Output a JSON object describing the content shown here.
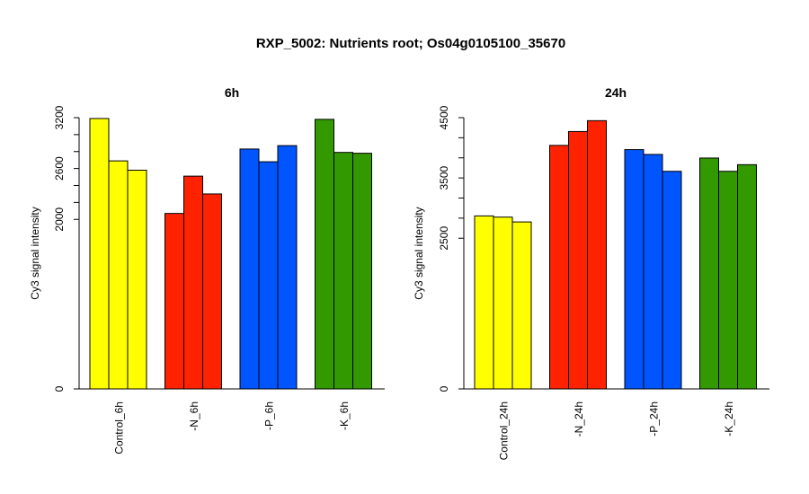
{
  "chart_title": "RXP_5002: Nutrients root; Os04g0105100_35670",
  "chart_data": [
    {
      "type": "bar",
      "title": "6h",
      "ylabel": "Cy3 signal intensity",
      "ylim": [
        0,
        3200
      ],
      "yticks": [
        0,
        2000,
        2600,
        3200
      ],
      "categories": [
        "Control_6h",
        "-N_6h",
        "-P_6h",
        "-K_6h"
      ],
      "colors": [
        "#ffff00",
        "#ff2200",
        "#0055ff",
        "#339900"
      ],
      "values": [
        [
          3190,
          2690,
          2580
        ],
        [
          2070,
          2510,
          2300
        ],
        [
          2830,
          2680,
          2870
        ],
        [
          3180,
          2790,
          2780
        ]
      ]
    },
    {
      "type": "bar",
      "title": "24h",
      "ylabel": "Cy3 signal intensity",
      "ylim": [
        0,
        4500
      ],
      "yticks": [
        0,
        2500,
        3500,
        4500
      ],
      "categories": [
        "Control_24h",
        "-N_24h",
        "-P_24h",
        "-K_24h"
      ],
      "colors": [
        "#ffff00",
        "#ff2200",
        "#0055ff",
        "#339900"
      ],
      "values": [
        [
          2870,
          2850,
          2770
        ],
        [
          4040,
          4270,
          4450
        ],
        [
          3970,
          3890,
          3610
        ],
        [
          3830,
          3610,
          3720
        ]
      ]
    }
  ]
}
